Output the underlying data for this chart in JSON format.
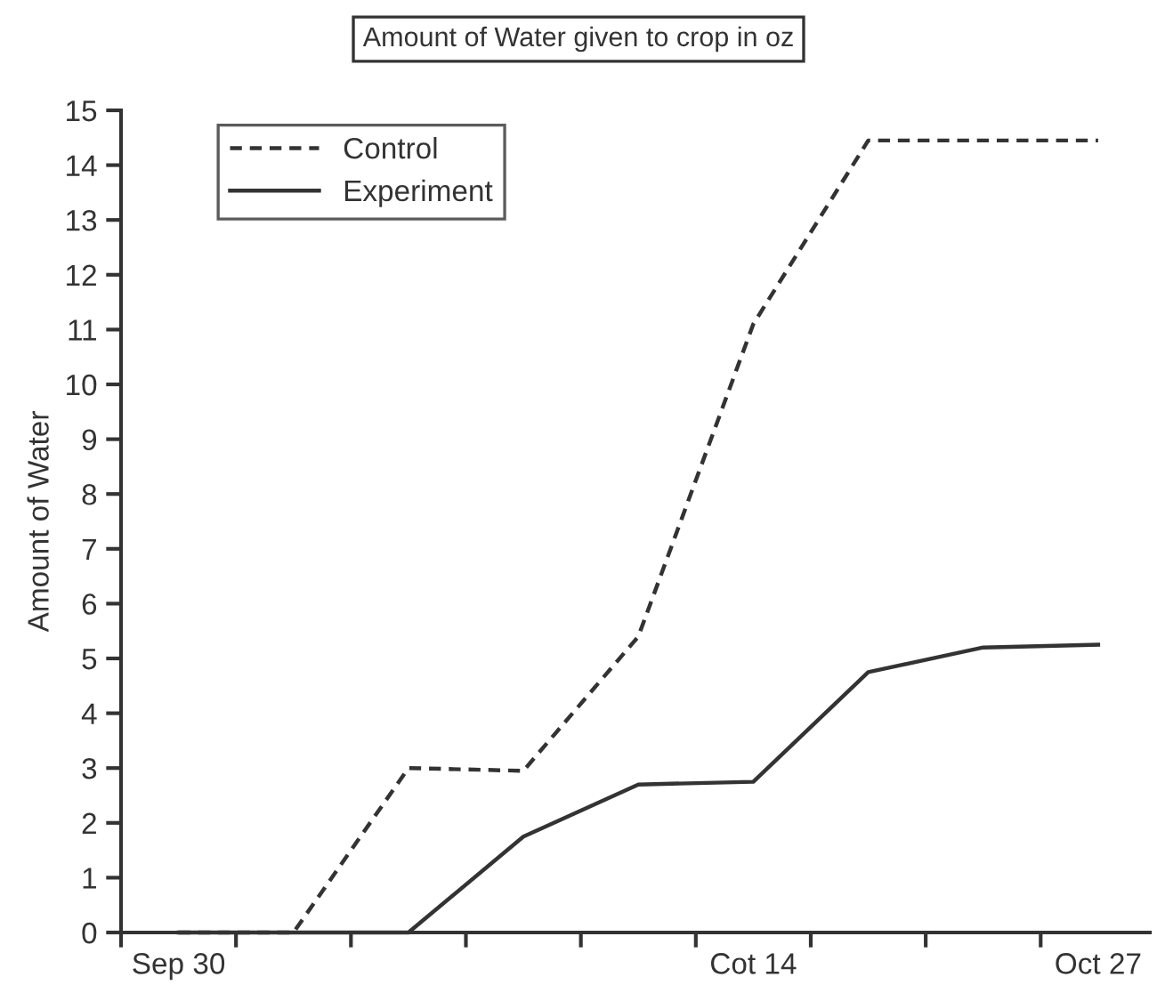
{
  "chart_data": {
    "type": "line",
    "title": "Amount of Water given to crop in oz",
    "ylabel": "Amount of Water",
    "categories": [
      "Sep 30",
      null,
      null,
      null,
      null,
      "Cot 14",
      null,
      null,
      "Oct 27"
    ],
    "series": [
      {
        "name": "Control",
        "color": "#333333",
        "line_style": "dashed",
        "values": [
          0,
          0,
          3,
          2.95,
          5.4,
          11.1,
          14.45,
          14.45,
          14.45
        ]
      },
      {
        "name": "Experiment",
        "color": "#333333",
        "line_style": "solid",
        "values": [
          0,
          0,
          0,
          1.75,
          2.7,
          2.75,
          4.75,
          5.2,
          5.25
        ]
      }
    ],
    "ylim": [
      0,
      15
    ],
    "yticks": [
      0,
      1,
      2,
      3,
      4,
      5,
      6,
      7,
      8,
      9,
      10,
      11,
      12,
      13,
      14,
      15
    ],
    "grid": false,
    "legend": "top left",
    "marker": "none"
  }
}
